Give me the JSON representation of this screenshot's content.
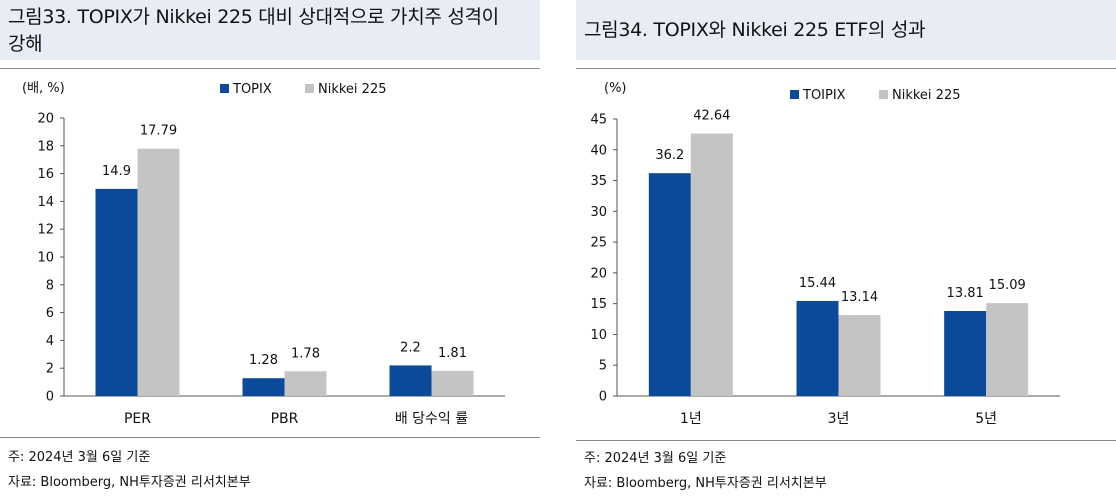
{
  "left": {
    "title_line1": "그림33. TOPIX가 Nikkei 225 대비 상대적으로 가치주 성격이",
    "title_line2": "강해",
    "note": "주: 2024년 3월 6일 기준",
    "source": "자료: Bloomberg, NH투자증권 리서치본부"
  },
  "right": {
    "title_line1": "그림34. TOPIX와 Nikkei 225 ETF의 성과",
    "note": "주: 2024년 3월 6일 기준",
    "source": "자료: Bloomberg, NH투자증권 리서치본부"
  },
  "colors": {
    "series1": "#0b4a9a",
    "series2": "#c4c4c4",
    "title_bg": "#e8edf5"
  },
  "chart_data": [
    {
      "type": "bar",
      "unit_label": "(배, %)",
      "categories": [
        "PER",
        "PBR",
        "배 당수익 률"
      ],
      "series": [
        {
          "name": "TOPIX",
          "values": [
            14.9,
            1.28,
            2.2
          ],
          "labels": [
            "14.9",
            "1.28",
            "2.2"
          ]
        },
        {
          "name": "Nikkei 225",
          "values": [
            17.79,
            1.78,
            1.81
          ],
          "labels": [
            "17.79",
            "1.78",
            "1.81"
          ]
        }
      ],
      "ylim": [
        0,
        20
      ],
      "yticks": [
        0,
        2,
        4,
        6,
        8,
        10,
        12,
        14,
        16,
        18,
        20
      ],
      "legend": "top-center"
    },
    {
      "type": "bar",
      "unit_label": "(%)",
      "categories": [
        "1년",
        "3년",
        "5년"
      ],
      "series": [
        {
          "name": "TOIPIX",
          "values": [
            36.2,
            15.44,
            13.81
          ],
          "labels": [
            "36.2",
            "15.44",
            "13.81"
          ]
        },
        {
          "name": "Nikkei 225",
          "values": [
            42.64,
            13.14,
            15.09
          ],
          "labels": [
            "42.64",
            "13.14",
            "15.09"
          ]
        }
      ],
      "ylim": [
        0,
        45
      ],
      "yticks": [
        0,
        5,
        10,
        15,
        20,
        25,
        30,
        35,
        40,
        45
      ],
      "legend": "top-center"
    }
  ]
}
